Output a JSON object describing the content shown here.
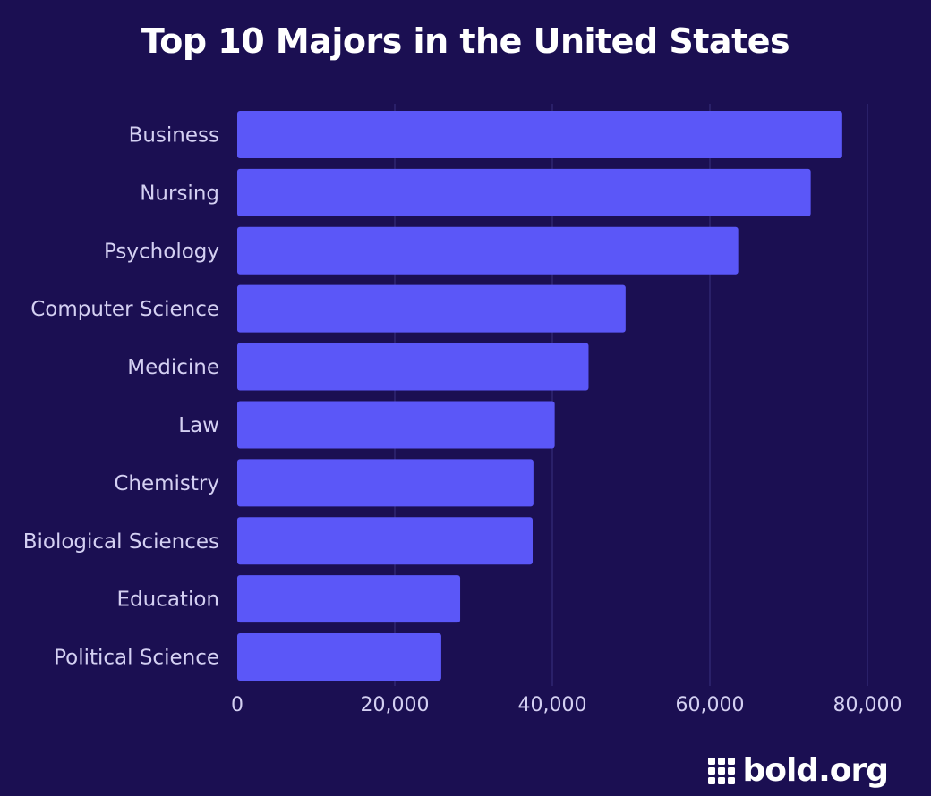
{
  "title": "Top 10 Majors in the United States",
  "brand": {
    "logo_text": "bold.org"
  },
  "colors": {
    "background": "#1b0f52",
    "bar": "#5b57f8",
    "grid": "#3a3080",
    "text": "#ffffff",
    "tick_text": "#d4d0f2"
  },
  "chart_data": {
    "type": "bar",
    "orientation": "horizontal",
    "title": "Top 10 Majors in the United States",
    "categories": [
      "Business",
      "Nursing",
      "Psychology",
      "Computer Science",
      "Medicine",
      "Law",
      "Chemistry",
      "Biological Sciences",
      "Education",
      "Political Science"
    ],
    "values": [
      76800,
      72800,
      63600,
      49300,
      44600,
      40300,
      37600,
      37500,
      28300,
      25900
    ],
    "xlim": [
      0,
      80000
    ],
    "x_ticks": [
      0,
      20000,
      40000,
      60000,
      80000
    ],
    "x_tick_labels": [
      "0",
      "20,000",
      "40,000",
      "60,000",
      "80,000"
    ],
    "grid": "vertical",
    "legend": "none"
  }
}
